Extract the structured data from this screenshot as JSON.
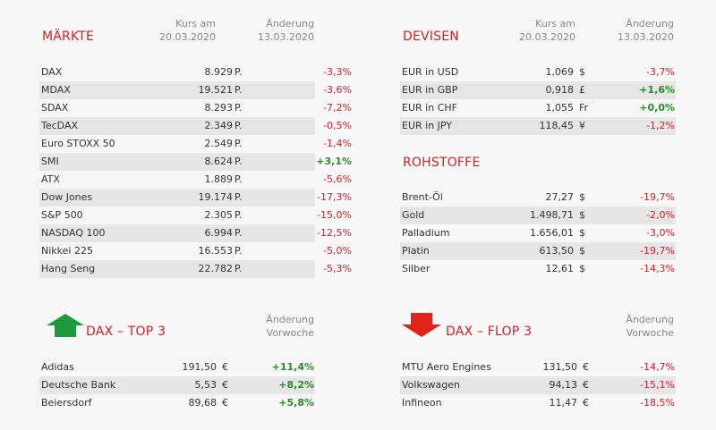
{
  "maerkte": {
    "title": "MÄRKTE",
    "col_kurs": [
      "Kurs am",
      "20.03.2020"
    ],
    "col_aenderung": [
      "Änderung",
      "13.03.2020"
    ],
    "rows": [
      {
        "name": "DAX",
        "value": "8.929",
        "unit": "P.",
        "change": "-3,3%"
      },
      {
        "name": "MDAX",
        "value": "19.521",
        "unit": "P.",
        "change": "-3,6%"
      },
      {
        "name": "SDAX",
        "value": "8.293",
        "unit": "P.",
        "change": "-7,2%"
      },
      {
        "name": "TecDAX",
        "value": "2.349",
        "unit": "P.",
        "change": "-0,5%"
      },
      {
        "name": "Euro STOXX 50",
        "value": "2.549",
        "unit": "P.",
        "change": "-1,4%"
      },
      {
        "name": "SMI",
        "value": "8.624",
        "unit": "P.",
        "change": "+3,1%"
      },
      {
        "name": "ATX",
        "value": "1.889",
        "unit": "P.",
        "change": "-5,6%"
      },
      {
        "name": "Dow Jones",
        "value": "19.174",
        "unit": "P.",
        "change": "-17,3%"
      },
      {
        "name": "S&P 500",
        "value": "2.305",
        "unit": "P.",
        "change": "-15,0%"
      },
      {
        "name": "NASDAQ 100",
        "value": "6.994",
        "unit": "P.",
        "change": "-12,5%"
      },
      {
        "name": "Nikkei 225",
        "value": "16.553",
        "unit": "P.",
        "change": "-5,0%"
      },
      {
        "name": "Hang Seng",
        "value": "22.782",
        "unit": "P.",
        "change": "-5,3%"
      }
    ]
  },
  "devisen": {
    "title": "DEVISEN",
    "col_kurs": [
      "Kurs am",
      "20.03.2020"
    ],
    "col_aenderung": [
      "Änderung",
      "13.03.2020"
    ],
    "rows": [
      {
        "name": "EUR in USD",
        "value": "1,069",
        "unit": "$",
        "change": "-3,7%"
      },
      {
        "name": "EUR in GBP",
        "value": "0,918",
        "unit": "£",
        "change": "+1,6%"
      },
      {
        "name": "EUR in CHF",
        "value": "1,055",
        "unit": "Fr",
        "change": "+0,0%"
      },
      {
        "name": "EUR in JPY",
        "value": "118,45",
        "unit": "¥",
        "change": "-1,2%"
      }
    ]
  },
  "rohstoffe": {
    "title": "ROHSTOFFE",
    "rows": [
      {
        "name": "Brent-Öl",
        "value": "27,27",
        "unit": "$",
        "change": "-19,7%"
      },
      {
        "name": "Gold",
        "value": "1.498,71",
        "unit": "$",
        "change": "-2,0%"
      },
      {
        "name": "Palladium",
        "value": "1.656,01",
        "unit": "$",
        "change": "-3,0%"
      },
      {
        "name": "Platin",
        "value": "613,50",
        "unit": "$",
        "change": "-19,7%"
      },
      {
        "name": "Silber",
        "value": "12,61",
        "unit": "$",
        "change": "-14,3%"
      }
    ]
  },
  "top3": {
    "title": "DAX – TOP 3",
    "col_aenderung": [
      "Änderung",
      "Vorwoche"
    ],
    "arrow_color": "#1e9a3c",
    "rows": [
      {
        "name": "Adidas",
        "value": "191,50",
        "unit": "€",
        "change": "+11,4%"
      },
      {
        "name": "Deutsche Bank",
        "value": "5,53",
        "unit": "€",
        "change": "+8,2%"
      },
      {
        "name": "Beiersdorf",
        "value": "89,68",
        "unit": "€",
        "change": "+5,8%"
      }
    ]
  },
  "flop3": {
    "title": "DAX – FLOP 3",
    "col_aenderung": [
      "Änderung",
      "Vorwoche"
    ],
    "arrow_color": "#e0231b",
    "rows": [
      {
        "name": "MTU Aero Engines",
        "value": "131,50",
        "unit": "€",
        "change": "-14,7%"
      },
      {
        "name": "Volkswagen",
        "value": "94,13",
        "unit": "€",
        "change": "-15,1%"
      },
      {
        "name": "Infineon",
        "value": "11,47",
        "unit": "€",
        "change": "-18,5%"
      }
    ]
  },
  "colors": {
    "accent": "#d91c24",
    "positive": "#2a8a2a",
    "shade": "#e6e6e6"
  }
}
